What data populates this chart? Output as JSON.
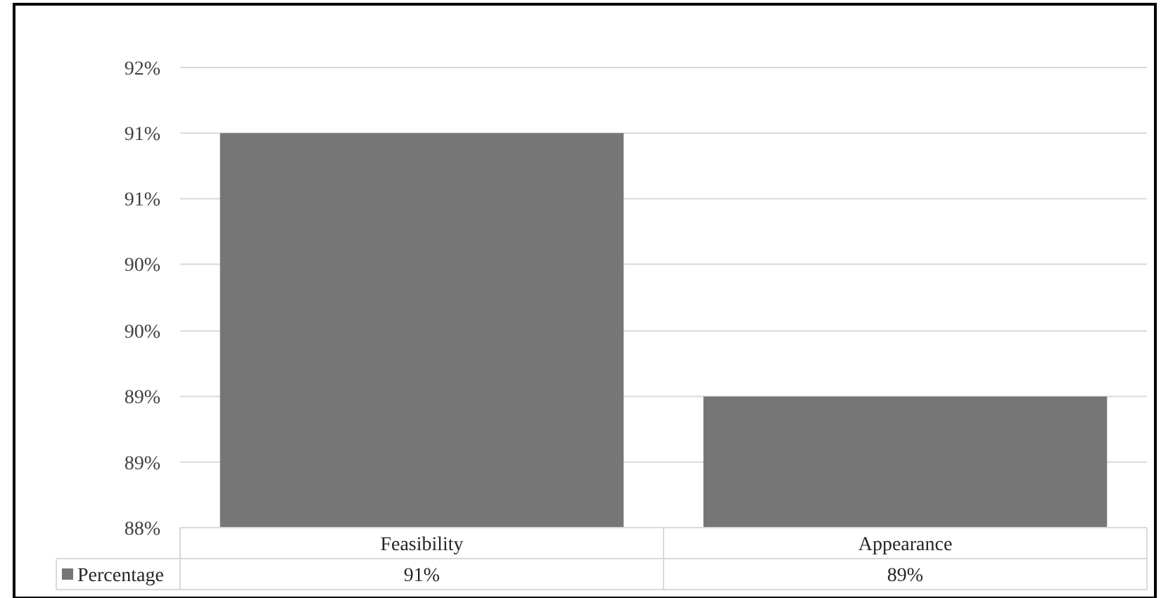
{
  "chart_data": {
    "type": "bar",
    "categories": [
      "Feasibility",
      "Appearance"
    ],
    "series": [
      {
        "name": "Percentage",
        "color": "#767676",
        "values": [
          91.43,
          89.14
        ],
        "value_labels": [
          "91%",
          "89%"
        ]
      }
    ],
    "ylim": [
      88,
      92
    ],
    "yticks": [
      {
        "value": 88,
        "label": "88%"
      },
      {
        "value": 88.57,
        "label": "89%"
      },
      {
        "value": 89.14,
        "label": "89%"
      },
      {
        "value": 89.71,
        "label": "90%"
      },
      {
        "value": 90.29,
        "label": "90%"
      },
      {
        "value": 90.86,
        "label": "91%"
      },
      {
        "value": 91.43,
        "label": "91%"
      },
      {
        "value": 92,
        "label": "92%"
      }
    ],
    "grid": "y",
    "legend": "bottom"
  }
}
